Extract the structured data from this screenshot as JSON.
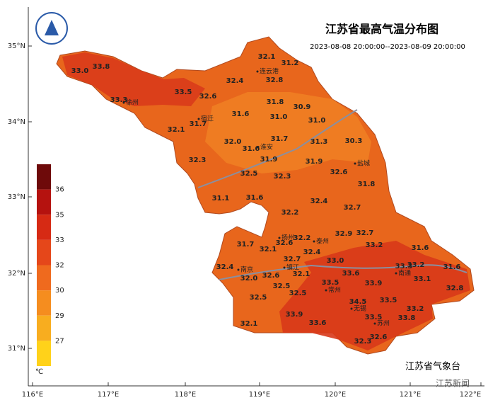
{
  "map": {
    "title": "江苏省最高气温分布图",
    "subtitle": "2023-08-08 20:00:00--2023-08-09 20:00:00",
    "source": "江苏省气象台",
    "watermark": "江苏新闻",
    "lat_labels": [
      "35°N",
      "34°N",
      "33°N",
      "32°N",
      "31°N"
    ],
    "lon_labels": [
      "116°E",
      "117°E",
      "118°E",
      "119°E",
      "120°E",
      "121°E",
      "122°E"
    ],
    "legend": {
      "levels": [
        36,
        35,
        33,
        32,
        30,
        29,
        27
      ],
      "unit": "℃",
      "colors": [
        "#6e0a0a",
        "#b5120f",
        "#d62a14",
        "#e5471a",
        "#ef6a1e",
        "#f58d1f",
        "#f8ad1f",
        "#ffd21a"
      ]
    },
    "cities": [
      "连云港",
      "徐州",
      "宿迁",
      "淮安",
      "盐城",
      "扬州",
      "泰州",
      "南京",
      "镇江",
      "南通",
      "常州",
      "无锡",
      "苏州"
    ],
    "stations": [
      {
        "value": 33.0,
        "label": "33.0"
      },
      33.8,
      33.3,
      33.5,
      32.6,
      32.4,
      32.1,
      31.2,
      32.8,
      31.8,
      30.9,
      31.6,
      {
        "value": 31.0,
        "label": "31.0"
      },
      {
        "value": 31.0,
        "label": "31.0"
      },
      31.7,
      32.1,
      {
        "value": 32.0,
        "label": "32.0"
      },
      31.7,
      31.6,
      31.3,
      30.3,
      32.3,
      31.9,
      31.9,
      32.5,
      32.3,
      32.6,
      31.8,
      31.1,
      31.6,
      32.4,
      32.7,
      32.2,
      32.9,
      32.7,
      32.2,
      32.6,
      31.7,
      32.1,
      33.2,
      31.6,
      32.4,
      {
        "value": 33.0,
        "label": "33.0"
      },
      32.7,
      33.3,
      33.2,
      32.4,
      32.6,
      32.1,
      33.6,
      31.6,
      {
        "value": 32.0,
        "label": "32.0"
      },
      33.1,
      33.5,
      33.9,
      32.5,
      32.5,
      32.8,
      32.5,
      34.5,
      33.5,
      33.2,
      33.9,
      33.5,
      33.8,
      33.6,
      32.1,
      32.6,
      32.3
    ]
  }
}
